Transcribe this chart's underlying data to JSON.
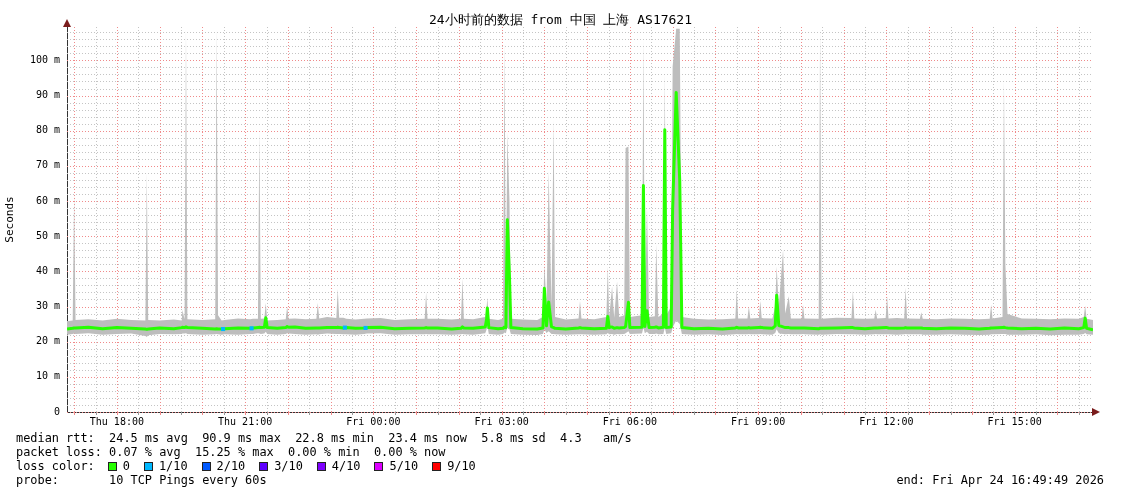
{
  "chart_data": {
    "type": "line",
    "title": "24小时前的数据 from 中国 上海 AS17621",
    "ylabel": "Seconds",
    "legend_title": "loss color:",
    "legend": "bottom",
    "grid": true,
    "xlim": [
      "2026-04-23T16:50",
      "2026-04-24T16:50"
    ],
    "ylim": [
      0,
      109.5
    ],
    "xticks": [
      {
        "value": "2026-04-23T17:00",
        "label": null
      },
      {
        "value": "2026-04-23T17:30",
        "label": null
      },
      {
        "value": "2026-04-23T18:00",
        "label": "Thu 18:00"
      },
      {
        "value": "2026-04-23T18:30",
        "label": null
      },
      {
        "value": "2026-04-23T19:00",
        "label": null
      },
      {
        "value": "2026-04-23T19:30",
        "label": null
      },
      {
        "value": "2026-04-23T20:00",
        "label": null
      },
      {
        "value": "2026-04-23T20:30",
        "label": null
      },
      {
        "value": "2026-04-23T21:00",
        "label": "Thu 21:00"
      },
      {
        "value": "2026-04-23T21:30",
        "label": null
      },
      {
        "value": "2026-04-23T22:00",
        "label": null
      },
      {
        "value": "2026-04-23T22:30",
        "label": null
      },
      {
        "value": "2026-04-23T23:00",
        "label": null
      },
      {
        "value": "2026-04-23T23:30",
        "label": null
      },
      {
        "value": "2026-04-24T00:00",
        "label": "Fri 00:00"
      },
      {
        "value": "2026-04-24T00:30",
        "label": null
      },
      {
        "value": "2026-04-24T01:00",
        "label": null
      },
      {
        "value": "2026-04-24T01:30",
        "label": null
      },
      {
        "value": "2026-04-24T02:00",
        "label": null
      },
      {
        "value": "2026-04-24T02:30",
        "label": null
      },
      {
        "value": "2026-04-24T03:00",
        "label": "Fri 03:00"
      },
      {
        "value": "2026-04-24T03:30",
        "label": null
      },
      {
        "value": "2026-04-24T04:00",
        "label": null
      },
      {
        "value": "2026-04-24T04:30",
        "label": null
      },
      {
        "value": "2026-04-24T05:00",
        "label": null
      },
      {
        "value": "2026-04-24T05:30",
        "label": null
      },
      {
        "value": "2026-04-24T06:00",
        "label": "Fri 06:00"
      },
      {
        "value": "2026-04-24T06:30",
        "label": null
      },
      {
        "value": "2026-04-24T07:00",
        "label": null
      },
      {
        "value": "2026-04-24T07:30",
        "label": null
      },
      {
        "value": "2026-04-24T08:00",
        "label": null
      },
      {
        "value": "2026-04-24T08:30",
        "label": null
      },
      {
        "value": "2026-04-24T09:00",
        "label": "Fri 09:00"
      },
      {
        "value": "2026-04-24T09:30",
        "label": null
      },
      {
        "value": "2026-04-24T10:00",
        "label": null
      },
      {
        "value": "2026-04-24T10:30",
        "label": null
      },
      {
        "value": "2026-04-24T11:00",
        "label": null
      },
      {
        "value": "2026-04-24T11:30",
        "label": null
      },
      {
        "value": "2026-04-24T12:00",
        "label": "Fri 12:00"
      },
      {
        "value": "2026-04-24T12:30",
        "label": null
      },
      {
        "value": "2026-04-24T13:00",
        "label": null
      },
      {
        "value": "2026-04-24T13:30",
        "label": null
      },
      {
        "value": "2026-04-24T14:00",
        "label": null
      },
      {
        "value": "2026-04-24T14:30",
        "label": null
      },
      {
        "value": "2026-04-24T15:00",
        "label": "Fri 15:00"
      },
      {
        "value": "2026-04-24T15:30",
        "label": null
      },
      {
        "value": "2026-04-24T16:00",
        "label": null
      },
      {
        "value": "2026-04-24T16:30",
        "label": null
      }
    ],
    "yticks": [
      0,
      {
        "value": 2,
        "label": null
      },
      {
        "value": 4,
        "label": null
      },
      {
        "value": 6,
        "label": null
      },
      {
        "value": 8,
        "label": null
      },
      {
        "value": 10,
        "label": "10 m"
      },
      {
        "value": 12,
        "label": null
      },
      {
        "value": 14,
        "label": null
      },
      {
        "value": 16,
        "label": null
      },
      {
        "value": 18,
        "label": null
      },
      {
        "value": 20,
        "label": "20 m"
      },
      {
        "value": 22,
        "label": null
      },
      {
        "value": 24,
        "label": null
      },
      {
        "value": 26,
        "label": null
      },
      {
        "value": 28,
        "label": null
      },
      {
        "value": 30,
        "label": "30 m"
      },
      {
        "value": 32,
        "label": null
      },
      {
        "value": 34,
        "label": null
      },
      {
        "value": 36,
        "label": null
      },
      {
        "value": 38,
        "label": null
      },
      {
        "value": 40,
        "label": "40 m"
      },
      {
        "value": 42,
        "label": null
      },
      {
        "value": 44,
        "label": null
      },
      {
        "value": 46,
        "label": null
      },
      {
        "value": 48,
        "label": null
      },
      {
        "value": 50,
        "label": "50 m"
      },
      {
        "value": 52,
        "label": null
      },
      {
        "value": 54,
        "label": null
      },
      {
        "value": 56,
        "label": null
      },
      {
        "value": 58,
        "label": null
      },
      {
        "value": 60,
        "label": "60 m"
      },
      {
        "value": 62,
        "label": null
      },
      {
        "value": 64,
        "label": null
      },
      {
        "value": 66,
        "label": null
      },
      {
        "value": 68,
        "label": null
      },
      {
        "value": 70,
        "label": "70 m"
      },
      {
        "value": 72,
        "label": null
      },
      {
        "value": 74,
        "label": null
      },
      {
        "value": 76,
        "label": null
      },
      {
        "value": 78,
        "label": null
      },
      {
        "value": 80,
        "label": "80 m"
      },
      {
        "value": 82,
        "label": null
      },
      {
        "value": 84,
        "label": null
      },
      {
        "value": 86,
        "label": null
      },
      {
        "value": 88,
        "label": null
      },
      {
        "value": 90,
        "label": "90 m"
      },
      {
        "value": 92,
        "label": null
      },
      {
        "value": 94,
        "label": null
      },
      {
        "value": 96,
        "label": null
      },
      {
        "value": 98,
        "label": null
      },
      {
        "value": 100,
        "label": "100 m"
      },
      {
        "value": 102,
        "label": null
      },
      {
        "value": 104,
        "label": null
      },
      {
        "value": 106,
        "label": null
      },
      {
        "value": 108,
        "label": null
      }
    ],
    "x": [
      "2026-04-23T16:50",
      "2026-04-23T16:58",
      "2026-04-23T17:00",
      "2026-04-23T17:02",
      "2026-04-23T17:20",
      "2026-04-23T17:40",
      "2026-04-23T18:00",
      "2026-04-23T18:20",
      "2026-04-23T18:40",
      "2026-04-23T18:42",
      "2026-04-23T18:44",
      "2026-04-23T19:00",
      "2026-04-23T19:20",
      "2026-04-23T19:31",
      "2026-04-23T19:32",
      "2026-04-23T19:35",
      "2026-04-23T19:37",
      "2026-04-23T19:39",
      "2026-04-23T20:00",
      "2026-04-23T20:18",
      "2026-04-23T20:20",
      "2026-04-23T20:22",
      "2026-04-23T20:27",
      "2026-04-23T20:31",
      "2026-04-23T20:50",
      "2026-04-23T21:07",
      "2026-04-23T21:11",
      "2026-04-23T21:18",
      "2026-04-23T21:20",
      "2026-04-23T21:22",
      "2026-04-23T21:27",
      "2026-04-23T21:29",
      "2026-04-23T21:31",
      "2026-04-23T21:45",
      "2026-04-23T21:57",
      "2026-04-23T21:59",
      "2026-04-23T22:01",
      "2026-04-23T22:10",
      "2026-04-23T22:25",
      "2026-04-23T22:40",
      "2026-04-23T22:42",
      "2026-04-23T22:44",
      "2026-04-23T22:55",
      "2026-04-23T23:08",
      "2026-04-23T23:10",
      "2026-04-23T23:12",
      "2026-04-23T23:18",
      "2026-04-23T23:22",
      "2026-04-23T23:35",
      "2026-04-23T23:47",
      "2026-04-23T23:51",
      "2026-04-24T00:10",
      "2026-04-24T00:30",
      "2026-04-24T00:50",
      "2026-04-24T01:12",
      "2026-04-24T01:14",
      "2026-04-24T01:16",
      "2026-04-24T01:30",
      "2026-04-24T01:50",
      "2026-04-24T02:03",
      "2026-04-24T02:05",
      "2026-04-24T02:07",
      "2026-04-24T02:20",
      "2026-04-24T02:37",
      "2026-04-24T02:39",
      "2026-04-24T02:40",
      "2026-04-24T02:42",
      "2026-04-24T02:55",
      "2026-04-24T03:02",
      "2026-04-24T03:04",
      "2026-04-24T03:06",
      "2026-04-24T03:08",
      "2026-04-24T03:11",
      "2026-04-24T03:13",
      "2026-04-24T03:30",
      "2026-04-24T03:50",
      "2026-04-24T03:58",
      "2026-04-24T04:00",
      "2026-04-24T04:03",
      "2026-04-24T04:06",
      "2026-04-24T04:10",
      "2026-04-24T04:13",
      "2026-04-24T04:15",
      "2026-04-24T04:30",
      "2026-04-24T04:48",
      "2026-04-24T04:50",
      "2026-04-24T04:52",
      "2026-04-24T05:10",
      "2026-04-24T05:27",
      "2026-04-24T05:29",
      "2026-04-24T05:31",
      "2026-04-24T05:35",
      "2026-04-24T05:38",
      "2026-04-24T05:42",
      "2026-04-24T05:45",
      "2026-04-24T05:52",
      "2026-04-24T05:54",
      "2026-04-24T05:58",
      "2026-04-24T06:00",
      "2026-04-24T06:17",
      "2026-04-24T06:19",
      "2026-04-24T06:21",
      "2026-04-24T06:24",
      "2026-04-24T06:27",
      "2026-04-24T06:35",
      "2026-04-24T06:37",
      "2026-04-24T06:40",
      "2026-04-24T06:47",
      "2026-04-24T06:49",
      "2026-04-24T06:51",
      "2026-04-24T06:58",
      "2026-04-24T07:00",
      "2026-04-24T07:05",
      "2026-04-24T07:10",
      "2026-04-24T07:13",
      "2026-04-24T07:30",
      "2026-04-24T07:50",
      "2026-04-24T08:10",
      "2026-04-24T08:28",
      "2026-04-24T08:30",
      "2026-04-24T08:32",
      "2026-04-24T08:45",
      "2026-04-24T08:47",
      "2026-04-24T08:49",
      "2026-04-24T09:01",
      "2026-04-24T09:03",
      "2026-04-24T09:05",
      "2026-04-24T09:20",
      "2026-04-24T09:24",
      "2026-04-24T09:26",
      "2026-04-24T09:29",
      "2026-04-24T09:35",
      "2026-04-24T09:38",
      "2026-04-24T09:43",
      "2026-04-24T09:46",
      "2026-04-24T10:01",
      "2026-04-24T10:03",
      "2026-04-24T10:05",
      "2026-04-24T10:25",
      "2026-04-24T10:27",
      "2026-04-24T10:29",
      "2026-04-24T10:50",
      "2026-04-24T11:11",
      "2026-04-24T11:13",
      "2026-04-24T11:15",
      "2026-04-24T11:30",
      "2026-04-24T11:43",
      "2026-04-24T11:45",
      "2026-04-24T11:47",
      "2026-04-24T11:59",
      "2026-04-24T12:01",
      "2026-04-24T12:03",
      "2026-04-24T12:15",
      "2026-04-24T12:25",
      "2026-04-24T12:27",
      "2026-04-24T12:29",
      "2026-04-24T12:47",
      "2026-04-24T12:49",
      "2026-04-24T12:51",
      "2026-04-24T13:10",
      "2026-04-24T13:30",
      "2026-04-24T13:50",
      "2026-04-24T14:10",
      "2026-04-24T14:25",
      "2026-04-24T14:27",
      "2026-04-24T14:29",
      "2026-04-24T14:43",
      "2026-04-24T14:45",
      "2026-04-24T14:47",
      "2026-04-24T14:50",
      "2026-04-24T15:10",
      "2026-04-24T15:30",
      "2026-04-24T15:50",
      "2026-04-24T16:10",
      "2026-04-24T16:30",
      "2026-04-24T16:37",
      "2026-04-24T16:39",
      "2026-04-24T16:41",
      "2026-04-24T16:50"
    ],
    "series": [
      {
        "name": "0",
        "color": "#26ff00",
        "values": [
          23.6,
          23.8,
          23.9,
          23.9,
          24.1,
          23.7,
          24,
          23.8,
          23.6,
          23.5,
          23.6,
          23.9,
          23.7,
          24,
          24.1,
          24,
          24.2,
          24,
          23.8,
          23.6,
          23.7,
          23.6,
          23.6,
          23.7,
          23.9,
          23.8,
          23.9,
          24,
          24.1,
          24,
          24.1,
          26.8,
          24,
          23.8,
          24,
          24.3,
          24.1,
          24.2,
          23.8,
          23.9,
          23.9,
          23.9,
          24,
          24,
          24.1,
          24,
          23.9,
          24,
          23.8,
          23.9,
          24,
          24.1,
          23.7,
          23.8,
          23.9,
          24,
          23.9,
          23.9,
          23.6,
          23.8,
          24.2,
          23.9,
          23.8,
          24.2,
          26.5,
          29.6,
          24,
          23.7,
          23.8,
          24.2,
          24,
          54.7,
          38.6,
          24,
          23.7,
          23.6,
          23.9,
          35.2,
          24.5,
          31.3,
          24.2,
          24,
          23.8,
          23.6,
          23.9,
          24,
          23.9,
          23.7,
          23.8,
          27.2,
          24,
          24.2,
          23.8,
          24,
          23.9,
          24,
          24.3,
          31.2,
          24,
          24.1,
          64.4,
          24.3,
          28.8,
          24,
          24.1,
          24.2,
          23.9,
          24.1,
          80.3,
          24,
          24.2,
          57.5,
          90.9,
          65.6,
          24,
          23.7,
          23.8,
          23.6,
          23.9,
          24.1,
          23.9,
          23.9,
          24,
          23.9,
          24,
          24.1,
          24,
          23.8,
          24.5,
          33.2,
          24.6,
          24.2,
          24,
          24,
          23.9,
          23.9,
          23.9,
          23.9,
          23.7,
          23.8,
          23.8,
          23.9,
          24,
          24,
          23.9,
          23.7,
          23.9,
          23.9,
          23.9,
          24,
          24,
          23.9,
          23.8,
          23.9,
          24,
          23.9,
          23.9,
          23.9,
          23.8,
          23.7,
          23.9,
          23.8,
          23.6,
          23.8,
          23.9,
          23.9,
          24,
          24.1,
          24,
          23.9,
          23.7,
          23.8,
          23.6,
          23.9,
          23.7,
          24,
          26.7,
          23.8,
          23.4
        ],
        "lower": [
          22,
          22.2,
          22.3,
          22.2,
          22.4,
          22,
          22.2,
          22.3,
          21.6,
          21.3,
          21.8,
          22.2,
          22.1,
          22.2,
          22.3,
          22.3,
          22.4,
          22.2,
          22,
          22.1,
          22.2,
          22.1,
          22,
          22.1,
          22,
          22.2,
          22.2,
          22.4,
          22.3,
          22.2,
          22.3,
          22.8,
          22.2,
          22,
          22.2,
          22.4,
          22.3,
          22.2,
          22,
          22.1,
          22,
          22.1,
          22.3,
          22.2,
          22.2,
          22.2,
          22.1,
          22.1,
          22,
          22.2,
          22.3,
          22.4,
          22,
          22.1,
          22.1,
          22.2,
          22.1,
          22.1,
          22,
          22.1,
          22.2,
          22.1,
          22,
          22.4,
          23.5,
          24.5,
          22.2,
          22,
          22.2,
          22.6,
          22.4,
          24,
          23.5,
          22.2,
          22,
          21.9,
          22.2,
          23.5,
          22.5,
          23,
          22.2,
          22.2,
          22.1,
          22,
          22.1,
          22.1,
          22.1,
          22,
          22.1,
          22.5,
          22.1,
          22.2,
          22,
          22.2,
          22.1,
          22.2,
          22.4,
          23,
          22.2,
          22.3,
          24,
          22.4,
          22.8,
          22.2,
          22.2,
          22.3,
          22.1,
          22.2,
          24,
          22.2,
          22.4,
          24,
          26,
          25,
          22.2,
          22,
          22.1,
          21.9,
          22.1,
          22.2,
          22.1,
          22.1,
          22.2,
          22.1,
          22.1,
          22.2,
          22.1,
          22,
          22.5,
          23.5,
          22.4,
          22.2,
          22.1,
          22.2,
          22.1,
          22.1,
          22.2,
          22.1,
          22,
          22.1,
          22,
          22.2,
          22.1,
          22.1,
          22.1,
          22,
          22.1,
          22.2,
          22.1,
          22.1,
          22.1,
          22.1,
          22,
          22.1,
          22.2,
          22.1,
          22.1,
          22.1,
          22,
          22,
          22.1,
          22,
          21.9,
          22,
          22.1,
          22.1,
          22.2,
          22.2,
          22.2,
          22,
          22,
          22.1,
          21.8,
          22,
          22,
          22.2,
          22.5,
          22.1,
          22
        ],
        "upper": [
          25.8,
          26,
          62,
          26.2,
          26.4,
          26,
          26.5,
          26.2,
          26,
          68,
          26.2,
          26,
          26.3,
          26,
          29,
          26.4,
          109,
          26.4,
          26.2,
          26.4,
          109,
          27.5,
          26,
          26.2,
          26.6,
          26.4,
          26.5,
          26.5,
          80,
          26.5,
          26.6,
          31,
          26,
          26.2,
          26.4,
          30,
          26.5,
          26.6,
          26.4,
          26.5,
          31,
          26.6,
          27,
          26.7,
          35,
          26.8,
          26.8,
          26.5,
          26.3,
          26.5,
          26.6,
          26.7,
          26.2,
          26.4,
          26.5,
          34,
          26.5,
          26.5,
          26.3,
          26.5,
          38,
          26.5,
          26.4,
          27,
          30,
          32.5,
          26.5,
          26.2,
          26.5,
          105,
          30,
          79.4,
          60,
          26.5,
          26.3,
          26.2,
          27,
          42,
          30,
          68.4,
          30,
          83.1,
          27,
          26.3,
          26.6,
          31.6,
          26.6,
          26.4,
          27,
          41.4,
          27,
          35.7,
          26.8,
          37.1,
          27,
          27.5,
          75.1,
          75.5,
          27,
          27.5,
          106.1,
          28,
          58,
          27,
          27.2,
          47.6,
          27,
          28,
          96.4,
          27.5,
          30,
          98.3,
          109,
          109,
          27,
          26.5,
          26.3,
          26.4,
          26.6,
          35,
          26.6,
          26.6,
          30,
          26.6,
          26.7,
          31.6,
          26.7,
          26.6,
          30,
          41.4,
          30,
          46.1,
          28,
          32.9,
          26.6,
          26.6,
          30.5,
          26.6,
          26.5,
          109,
          26.5,
          26.8,
          26.7,
          34.5,
          26.6,
          26.5,
          26.6,
          29.1,
          26.6,
          26.7,
          32.9,
          26.6,
          26.7,
          26.6,
          35.4,
          26.6,
          26.5,
          28.4,
          26.5,
          26.4,
          26.6,
          26.5,
          26.4,
          26.5,
          30.5,
          26.6,
          27,
          94.2,
          41.9,
          27.9,
          26.6,
          26.5,
          26.4,
          26.6,
          26.5,
          27,
          30.2,
          26.5,
          26.2
        ]
      },
      {
        "name": "1/10",
        "color": "#00b8ff",
        "type": "scatter",
        "marker": "square",
        "x": [
          "2026-04-23T20:29",
          "2026-04-23T21:09",
          "2026-04-23T23:20",
          "2026-04-23T23:49"
        ],
        "values": [
          23.6,
          23.8,
          24,
          23.9
        ]
      },
      {
        "name": "2/10",
        "color": "#0059ff",
        "values": [
          null,
          null,
          null,
          null,
          null,
          null,
          null,
          null,
          null,
          null,
          null,
          null,
          null,
          null,
          null,
          null,
          null,
          null,
          null,
          null,
          null,
          null,
          null,
          null,
          null,
          null,
          null,
          null,
          null,
          null,
          null,
          null,
          null,
          null,
          null,
          null,
          null,
          null,
          null,
          null,
          null,
          null,
          null,
          null,
          null,
          null,
          null,
          null,
          null,
          null,
          null,
          null,
          null,
          null,
          null,
          null,
          null,
          null,
          null,
          null,
          null,
          null,
          null,
          null,
          null,
          null,
          null,
          null,
          null,
          null,
          null,
          null,
          null,
          null,
          null,
          null,
          null,
          null,
          null,
          null,
          null,
          null,
          null,
          null,
          null,
          null,
          null,
          null,
          null,
          null,
          null,
          null,
          null,
          null,
          null,
          null,
          null,
          null,
          null,
          null,
          null,
          null,
          null,
          null,
          null,
          null,
          null,
          null,
          null,
          null,
          null,
          null,
          null,
          null,
          null,
          null,
          null,
          null,
          null,
          null,
          null,
          null,
          null,
          null,
          null,
          null,
          null,
          null,
          null,
          null,
          null,
          null,
          null,
          null,
          null,
          null,
          null,
          null,
          null,
          null,
          null,
          null,
          null,
          null,
          null,
          null,
          null,
          null,
          null,
          null,
          null,
          null,
          null,
          null,
          null,
          null,
          null,
          null,
          null,
          null,
          null,
          null,
          null,
          null,
          null,
          null,
          null,
          null,
          null,
          null,
          null,
          null,
          null,
          null,
          null,
          null,
          null,
          null,
          null
        ]
      },
      {
        "name": "3/10",
        "color": "#5e00ff",
        "values": [
          null,
          null,
          null,
          null,
          null,
          null,
          null,
          null,
          null,
          null,
          null,
          null,
          null,
          null,
          null,
          null,
          null,
          null,
          null,
          null,
          null,
          null,
          null,
          null,
          null,
          null,
          null,
          null,
          null,
          null,
          null,
          null,
          null,
          null,
          null,
          null,
          null,
          null,
          null,
          null,
          null,
          null,
          null,
          null,
          null,
          null,
          null,
          null,
          null,
          null,
          null,
          null,
          null,
          null,
          null,
          null,
          null,
          null,
          null,
          null,
          null,
          null,
          null,
          null,
          null,
          null,
          null,
          null,
          null,
          null,
          null,
          null,
          null,
          null,
          null,
          null,
          null,
          null,
          null,
          null,
          null,
          null,
          null,
          null,
          null,
          null,
          null,
          null,
          null,
          null,
          null,
          null,
          null,
          null,
          null,
          null,
          null,
          null,
          null,
          null,
          null,
          null,
          null,
          null,
          null,
          null,
          null,
          null,
          null,
          null,
          null,
          null,
          null,
          null,
          null,
          null,
          null,
          null,
          null,
          null,
          null,
          null,
          null,
          null,
          null,
          null,
          null,
          null,
          null,
          null,
          null,
          null,
          null,
          null,
          null,
          null,
          null,
          null,
          null,
          null,
          null,
          null,
          null,
          null,
          null,
          null,
          null,
          null,
          null,
          null,
          null,
          null,
          null,
          null,
          null,
          null,
          null,
          null,
          null,
          null,
          null,
          null,
          null,
          null,
          null,
          null,
          null,
          null,
          null,
          null,
          null,
          null,
          null,
          null,
          null,
          null,
          null,
          null,
          null
        ]
      },
      {
        "name": "4/10",
        "color": "#7e00ff",
        "values": [
          null,
          null,
          null,
          null,
          null,
          null,
          null,
          null,
          null,
          null,
          null,
          null,
          null,
          null,
          null,
          null,
          null,
          null,
          null,
          null,
          null,
          null,
          null,
          null,
          null,
          null,
          null,
          null,
          null,
          null,
          null,
          null,
          null,
          null,
          null,
          null,
          null,
          null,
          null,
          null,
          null,
          null,
          null,
          null,
          null,
          null,
          null,
          null,
          null,
          null,
          null,
          null,
          null,
          null,
          null,
          null,
          null,
          null,
          null,
          null,
          null,
          null,
          null,
          null,
          null,
          null,
          null,
          null,
          null,
          null,
          null,
          null,
          null,
          null,
          null,
          null,
          null,
          null,
          null,
          null,
          null,
          null,
          null,
          null,
          null,
          null,
          null,
          null,
          null,
          null,
          null,
          null,
          null,
          null,
          null,
          null,
          null,
          null,
          null,
          null,
          null,
          null,
          null,
          null,
          null,
          null,
          null,
          null,
          null,
          null,
          null,
          null,
          null,
          null,
          null,
          null,
          null,
          null,
          null,
          null,
          null,
          null,
          null,
          null,
          null,
          null,
          null,
          null,
          null,
          null,
          null,
          null,
          null,
          null,
          null,
          null,
          null,
          null,
          null,
          null,
          null,
          null,
          null,
          null,
          null,
          null,
          null,
          null,
          null,
          null,
          null,
          null,
          null,
          null,
          null,
          null,
          null,
          null,
          null,
          null,
          null,
          null,
          null,
          null,
          null,
          null,
          null,
          null,
          null,
          null,
          null,
          null,
          null,
          null,
          null,
          null,
          null,
          null,
          null
        ]
      },
      {
        "name": "5/10",
        "color": "#dd00ff",
        "values": [
          null,
          null,
          null,
          null,
          null,
          null,
          null,
          null,
          null,
          null,
          null,
          null,
          null,
          null,
          null,
          null,
          null,
          null,
          null,
          null,
          null,
          null,
          null,
          null,
          null,
          null,
          null,
          null,
          null,
          null,
          null,
          null,
          null,
          null,
          null,
          null,
          null,
          null,
          null,
          null,
          null,
          null,
          null,
          null,
          null,
          null,
          null,
          null,
          null,
          null,
          null,
          null,
          null,
          null,
          null,
          null,
          null,
          null,
          null,
          null,
          null,
          null,
          null,
          null,
          null,
          null,
          null,
          null,
          null,
          null,
          null,
          null,
          null,
          null,
          null,
          null,
          null,
          null,
          null,
          null,
          null,
          null,
          null,
          null,
          null,
          null,
          null,
          null,
          null,
          null,
          null,
          null,
          null,
          null,
          null,
          null,
          null,
          null,
          null,
          null,
          null,
          null,
          null,
          null,
          null,
          null,
          null,
          null,
          null,
          null,
          null,
          null,
          null,
          null,
          null,
          null,
          null,
          null,
          null,
          null,
          null,
          null,
          null,
          null,
          null,
          null,
          null,
          null,
          null,
          null,
          null,
          null,
          null,
          null,
          null,
          null,
          null,
          null,
          null,
          null,
          null,
          null,
          null,
          null,
          null,
          null,
          null,
          null,
          null,
          null,
          null,
          null,
          null,
          null,
          null,
          null,
          null,
          null,
          null,
          null,
          null,
          null,
          null,
          null,
          null,
          null,
          null,
          null,
          null,
          null,
          null,
          null,
          null,
          null,
          null,
          null,
          null,
          null,
          null
        ]
      },
      {
        "name": "9/10",
        "color": "#ff0000",
        "values": [
          null,
          null,
          null,
          null,
          null,
          null,
          null,
          null,
          null,
          null,
          null,
          null,
          null,
          null,
          null,
          null,
          null,
          null,
          null,
          null,
          null,
          null,
          null,
          null,
          null,
          null,
          null,
          null,
          null,
          null,
          null,
          null,
          null,
          null,
          null,
          null,
          null,
          null,
          null,
          null,
          null,
          null,
          null,
          null,
          null,
          null,
          null,
          null,
          null,
          null,
          null,
          null,
          null,
          null,
          null,
          null,
          null,
          null,
          null,
          null,
          null,
          null,
          null,
          null,
          null,
          null,
          null,
          null,
          null,
          null,
          null,
          null,
          null,
          null,
          null,
          null,
          null,
          null,
          null,
          null,
          null,
          null,
          null,
          null,
          null,
          null,
          null,
          null,
          null,
          null,
          null,
          null,
          null,
          null,
          null,
          null,
          null,
          null,
          null,
          null,
          null,
          null,
          null,
          null,
          null,
          null,
          null,
          null,
          null,
          null,
          null,
          null,
          null,
          null,
          null,
          null,
          null,
          null,
          null,
          null,
          null,
          null,
          null,
          null,
          null,
          null,
          null,
          null,
          null,
          null,
          null,
          null,
          null,
          null,
          null,
          null,
          null,
          null,
          null,
          null,
          null,
          null,
          null,
          null,
          null,
          null,
          null,
          null,
          null,
          null,
          null,
          null,
          null,
          null,
          null,
          null,
          null,
          null,
          null,
          null,
          null,
          null,
          null,
          null,
          null,
          null,
          null,
          null,
          null,
          null,
          null,
          null,
          null,
          null,
          null,
          null,
          null,
          null,
          null
        ]
      }
    ],
    "annotations": [
      "median rtt:  24.5 ms avg  90.9 ms max  22.8 ms min  23.4 ms now  5.8 ms sd  4.3   am/s",
      "packet loss: 0.07 % avg  15.25 % max  0.00 % min  0.00 % now",
      "probe:       10 TCP Pings every 60s",
      "end: Fri Apr 24 16:49:49 2026"
    ]
  }
}
